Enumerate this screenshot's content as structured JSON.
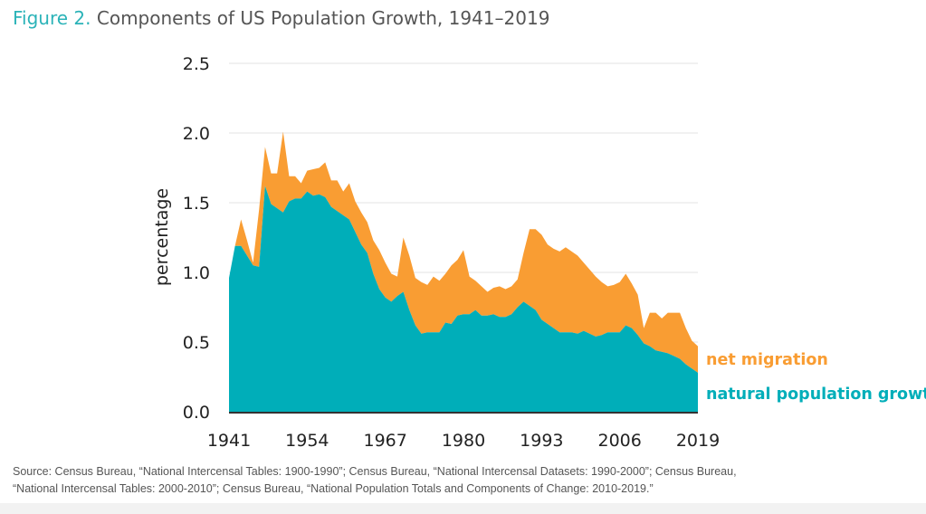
{
  "title": {
    "figure_label": "Figure 2.",
    "text": "Components of US Population Growth, 1941–2019"
  },
  "source": {
    "line1": "Source: Census Bureau, “National Intercensal Tables: 1900-1990”; Census Bureau, “National Intercensal Datasets: 1990-2000”; Census Bureau,",
    "line2": "“National Intercensal Tables: 2000-2010”; Census Bureau, “National Population Totals and Components of Change: 2010-2019.”"
  },
  "colors": {
    "natural": "#00AEB9",
    "migration": "#F99D33",
    "title_accent": "#2BB3B8"
  },
  "chart_data": {
    "type": "area",
    "stacked": true,
    "title": "Components of US Population Growth, 1941–2019",
    "xlabel": "",
    "ylabel": "percentage",
    "xlim": [
      1941,
      2019
    ],
    "ylim": [
      0,
      2.5
    ],
    "grid": true,
    "x_ticks": [
      "1941",
      "1954",
      "1967",
      "1980",
      "1993",
      "2006",
      "2019"
    ],
    "y_ticks": [
      "0.0",
      "0.5",
      "1.0",
      "1.5",
      "2.0",
      "2.5"
    ],
    "x": [
      1941,
      1942,
      1943,
      1944,
      1945,
      1946,
      1947,
      1948,
      1949,
      1950,
      1951,
      1952,
      1953,
      1954,
      1955,
      1956,
      1957,
      1958,
      1959,
      1960,
      1961,
      1962,
      1963,
      1964,
      1965,
      1966,
      1967,
      1968,
      1969,
      1970,
      1971,
      1972,
      1973,
      1974,
      1975,
      1976,
      1977,
      1978,
      1979,
      1980,
      1981,
      1982,
      1983,
      1984,
      1985,
      1986,
      1987,
      1988,
      1989,
      1990,
      1991,
      1992,
      1993,
      1994,
      1995,
      1996,
      1997,
      1998,
      1999,
      2000,
      2001,
      2002,
      2003,
      2004,
      2005,
      2006,
      2007,
      2008,
      2009,
      2010,
      2011,
      2012,
      2013,
      2014,
      2015,
      2016,
      2017,
      2018,
      2019
    ],
    "series": [
      {
        "name": "natural population growth",
        "values": [
          0.96,
          1.19,
          1.19,
          1.12,
          1.05,
          1.04,
          1.62,
          1.49,
          1.46,
          1.43,
          1.51,
          1.53,
          1.53,
          1.58,
          1.55,
          1.56,
          1.54,
          1.47,
          1.44,
          1.41,
          1.38,
          1.29,
          1.2,
          1.14,
          0.99,
          0.88,
          0.82,
          0.79,
          0.83,
          0.86,
          0.73,
          0.62,
          0.56,
          0.57,
          0.57,
          0.57,
          0.64,
          0.63,
          0.69,
          0.7,
          0.7,
          0.73,
          0.69,
          0.69,
          0.7,
          0.68,
          0.68,
          0.7,
          0.75,
          0.79,
          0.76,
          0.73,
          0.66,
          0.63,
          0.6,
          0.57,
          0.57,
          0.57,
          0.56,
          0.58,
          0.56,
          0.54,
          0.55,
          0.57,
          0.57,
          0.57,
          0.62,
          0.6,
          0.55,
          0.49,
          0.47,
          0.44,
          0.43,
          0.42,
          0.4,
          0.38,
          0.34,
          0.31,
          0.28
        ]
      },
      {
        "name": "net migration",
        "values": [
          0.0,
          0.0,
          0.19,
          0.11,
          0.02,
          0.41,
          0.28,
          0.22,
          0.25,
          0.58,
          0.18,
          0.16,
          0.11,
          0.15,
          0.19,
          0.19,
          0.25,
          0.19,
          0.22,
          0.17,
          0.26,
          0.22,
          0.23,
          0.22,
          0.24,
          0.28,
          0.25,
          0.2,
          0.14,
          0.39,
          0.39,
          0.34,
          0.37,
          0.34,
          0.4,
          0.37,
          0.35,
          0.42,
          0.4,
          0.46,
          0.27,
          0.21,
          0.21,
          0.17,
          0.19,
          0.22,
          0.2,
          0.2,
          0.2,
          0.35,
          0.55,
          0.58,
          0.61,
          0.57,
          0.57,
          0.58,
          0.61,
          0.58,
          0.56,
          0.49,
          0.46,
          0.43,
          0.38,
          0.33,
          0.34,
          0.36,
          0.37,
          0.32,
          0.29,
          0.11,
          0.24,
          0.27,
          0.24,
          0.29,
          0.31,
          0.33,
          0.26,
          0.2,
          0.19
        ]
      }
    ],
    "legend": "direct labels at right end of series"
  }
}
